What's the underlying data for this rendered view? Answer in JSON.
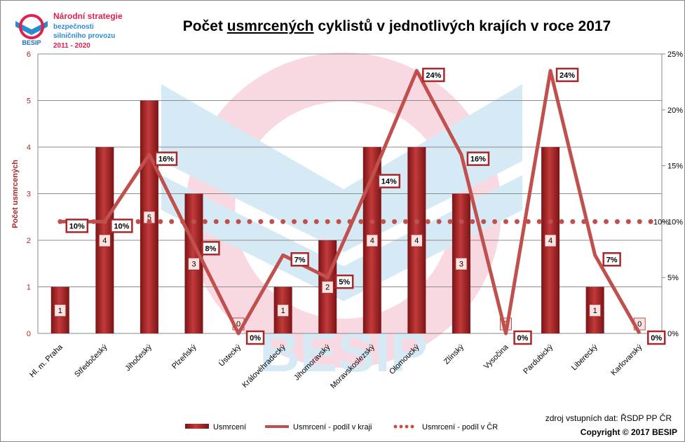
{
  "logo": {
    "lines": [
      "Národní strategie",
      "bezpečnosti",
      "silničního provozu",
      "2011 - 2020"
    ],
    "brand": "BESIP"
  },
  "chart_data": {
    "type": "bar-line",
    "title": [
      "Počet ",
      "usmrcených",
      " cyklistů v jednotlivých krajích v roce 2017"
    ],
    "y_label": "Počet usmrcených",
    "categories": [
      "Hl. m. Praha",
      "Středočeský",
      "Jihočeský",
      "Plzeňský",
      "Ústecký",
      "Královéhradecký",
      "Jihomoravský",
      "Moravskoslezský",
      "Olomoucký",
      "Zlínský",
      "Vysočina",
      "Pardubický",
      "Liberecký",
      "Karlovarský"
    ],
    "series": [
      {
        "name": "Usmrcení",
        "type": "bar",
        "color": "#a8282a",
        "values": [
          1,
          4,
          5,
          3,
          0,
          1,
          2,
          4,
          4,
          3,
          0,
          4,
          1,
          0
        ]
      },
      {
        "name": "Usmrcení - podíl v kraji",
        "type": "line",
        "axis": "y2",
        "color": "#c0504d",
        "values": [
          10,
          10,
          16,
          8,
          0,
          7,
          5,
          14,
          23.5,
          16,
          0,
          23.5,
          7,
          0
        ],
        "value_labels": [
          "10%",
          "10%",
          "16%",
          "8%",
          "0%",
          "7%",
          "5%",
          "14%",
          "24%",
          "16%",
          "0%",
          "24%",
          "7%",
          "0%"
        ]
      },
      {
        "name": "Usmrcení - podíl v ČR",
        "type": "dotted",
        "axis": "y2",
        "color": "#c0504d",
        "values": [
          10,
          10,
          10,
          10,
          10,
          10,
          10,
          10,
          10,
          10,
          10,
          10,
          10,
          10
        ],
        "value_labels": [
          null,
          null,
          null,
          null,
          null,
          null,
          null,
          null,
          null,
          null,
          null,
          null,
          null,
          "10%"
        ]
      }
    ],
    "ylim": [
      0,
      6
    ],
    "yticks": [
      0,
      1,
      2,
      3,
      4,
      5,
      6
    ],
    "y2lim": [
      0,
      25
    ],
    "y2ticks": [
      {
        "value": 0,
        "label": "0%"
      },
      {
        "value": 5,
        "label": "5%"
      },
      {
        "value": 10,
        "label": "10%"
      },
      {
        "value": 15,
        "label": "15%"
      },
      {
        "value": 20,
        "label": "20%"
      },
      {
        "value": 25,
        "label": "25%"
      }
    ],
    "grid": true
  },
  "footer": {
    "source": "zdroj vstupních dat: ŘSDP PP ČR",
    "copyright": "Copyright © 2017 BESIP"
  }
}
